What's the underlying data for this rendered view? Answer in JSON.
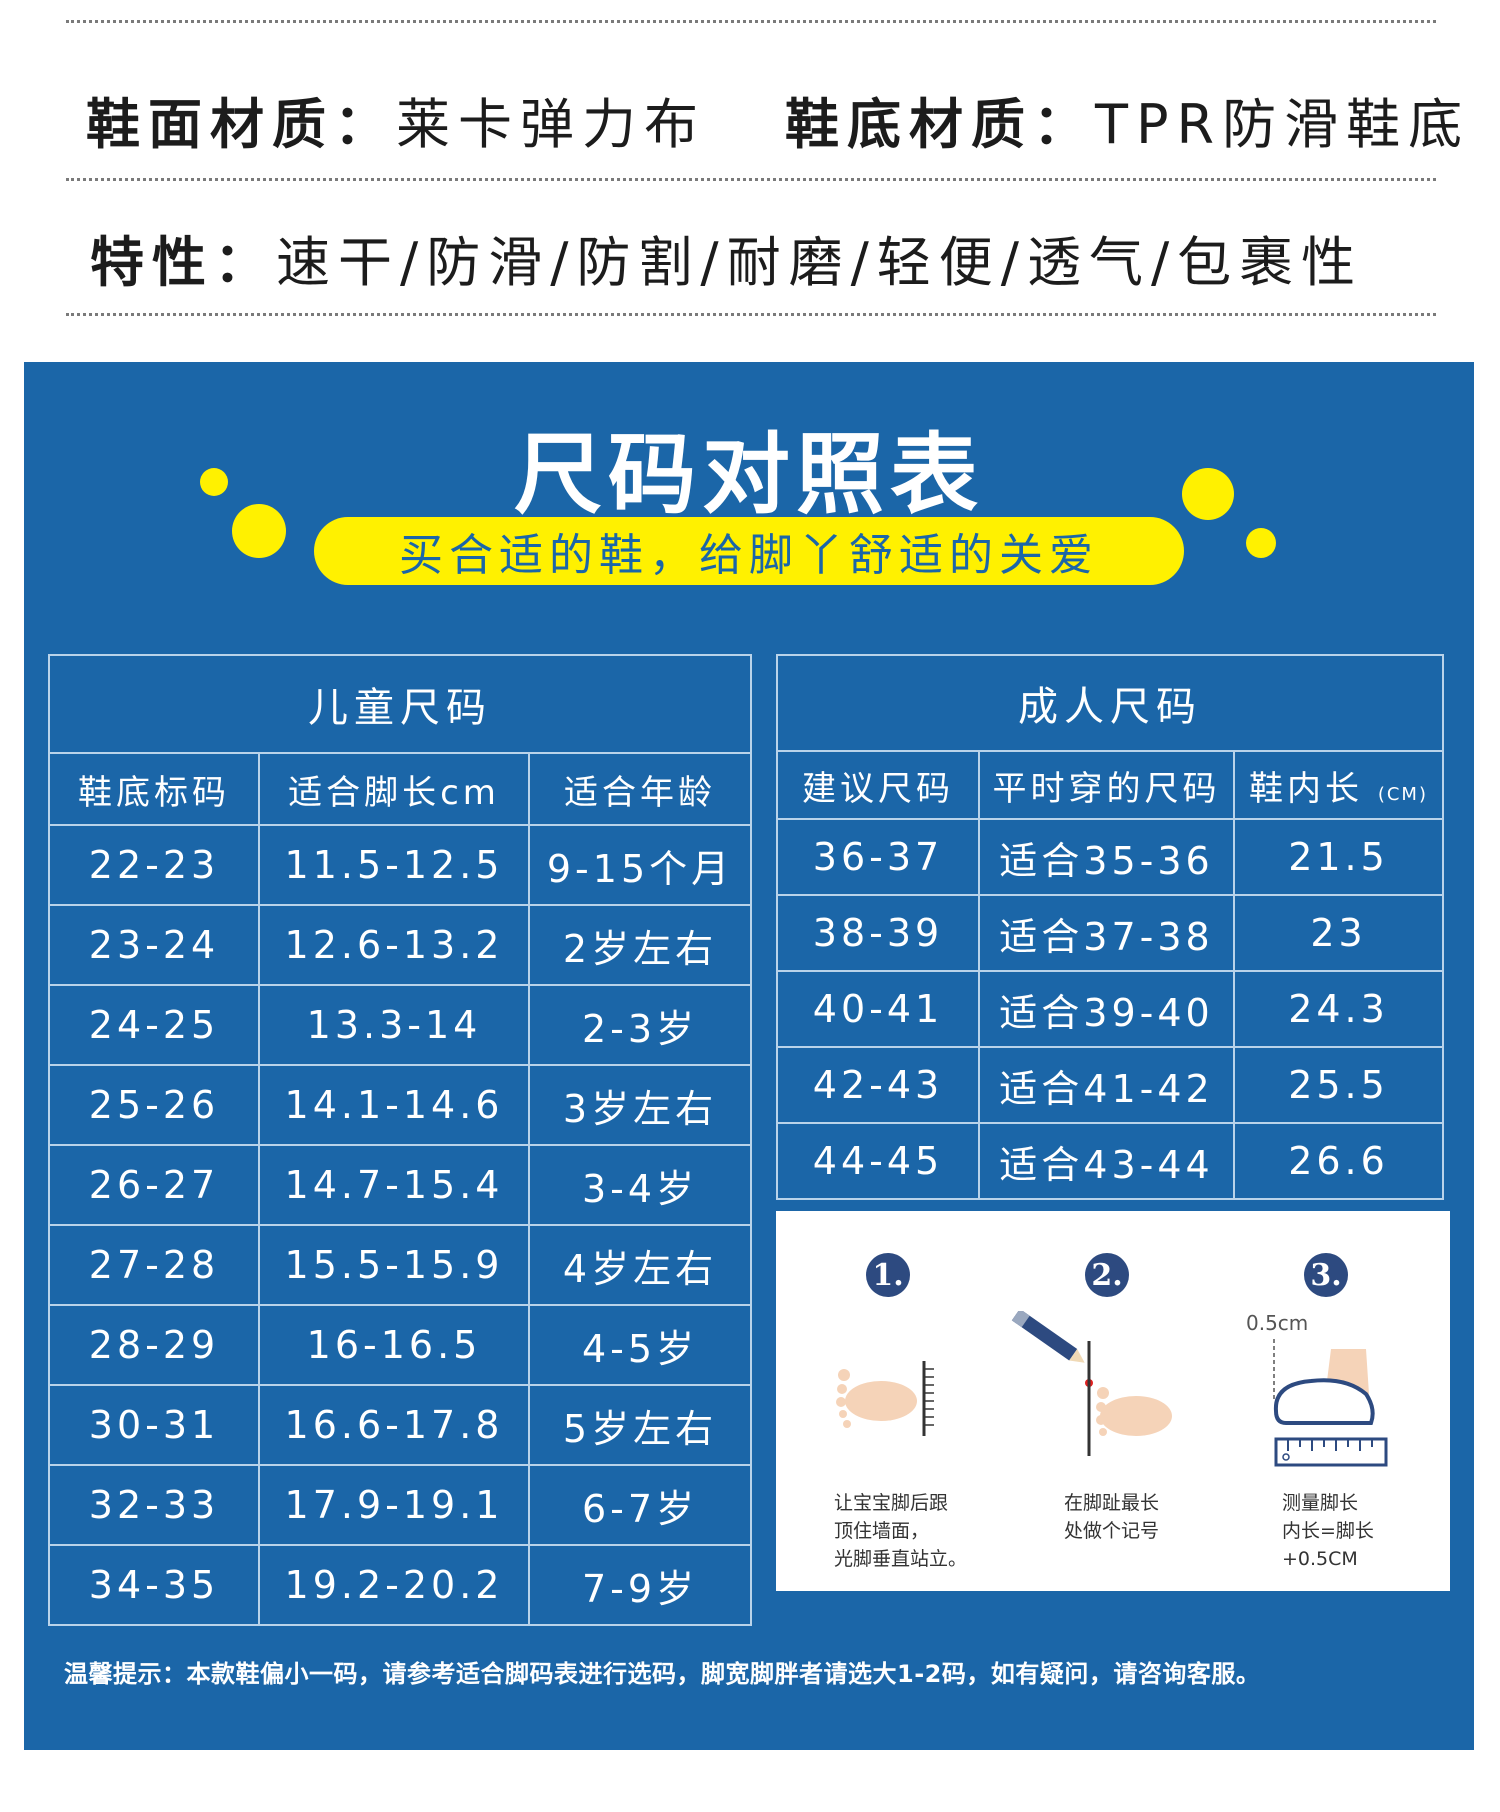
{
  "specs": {
    "upper_label": "鞋面材质：",
    "upper_value": "莱卡弹力布",
    "sole_label": "鞋底材质：",
    "sole_value": "TPR防滑鞋底",
    "features_label": "特性：",
    "features_value": "速干/防滑/防割/耐磨/轻便/透气/包裹性"
  },
  "panel": {
    "title": "尺码对照表",
    "slogan": "买合适的鞋，给脚丫舒适的关爱",
    "colors": {
      "background": "#1b66a8",
      "accent": "#fff100"
    }
  },
  "kids": {
    "title": "儿童尺码",
    "headers": [
      "鞋底标码",
      "适合脚长cm",
      "适合年龄"
    ],
    "rows": [
      [
        "22-23",
        "11.5-12.5",
        "9-15个月"
      ],
      [
        "23-24",
        "12.6-13.2",
        "2岁左右"
      ],
      [
        "24-25",
        "13.3-14",
        "2-3岁"
      ],
      [
        "25-26",
        "14.1-14.6",
        "3岁左右"
      ],
      [
        "26-27",
        "14.7-15.4",
        "3-4岁"
      ],
      [
        "27-28",
        "15.5-15.9",
        "4岁左右"
      ],
      [
        "28-29",
        "16-16.5",
        "4-5岁"
      ],
      [
        "30-31",
        "16.6-17.8",
        "5岁左右"
      ],
      [
        "32-33",
        "17.9-19.1",
        "6-7岁"
      ],
      [
        "34-35",
        "19.2-20.2",
        "7-9岁"
      ]
    ]
  },
  "adults": {
    "title": "成人尺码",
    "headers": [
      "建议尺码",
      "平时穿的尺码",
      "鞋内长"
    ],
    "header_unit": "(CM)",
    "rows": [
      [
        "36-37",
        "适合35-36",
        "21.5"
      ],
      [
        "38-39",
        "适合37-38",
        "23"
      ],
      [
        "40-41",
        "适合39-40",
        "24.3"
      ],
      [
        "42-43",
        "适合41-42",
        "25.5"
      ],
      [
        "44-45",
        "适合43-44",
        "26.6"
      ]
    ]
  },
  "measure": {
    "steps": [
      {
        "num": "1.",
        "text": "让宝宝脚后跟\n顶住墙面，\n光脚垂直站立。"
      },
      {
        "num": "2.",
        "text": "在脚趾最长\n处做个记号"
      },
      {
        "num": "3.",
        "text": "测量脚长\n内长=脚长\n+0.5CM"
      }
    ],
    "margin_label": "0.5cm"
  },
  "tip": "温馨提示：本款鞋偏小一码，请参考适合脚码表进行选码，脚宽脚胖者请选大1-2码，如有疑问，请咨询客服。"
}
